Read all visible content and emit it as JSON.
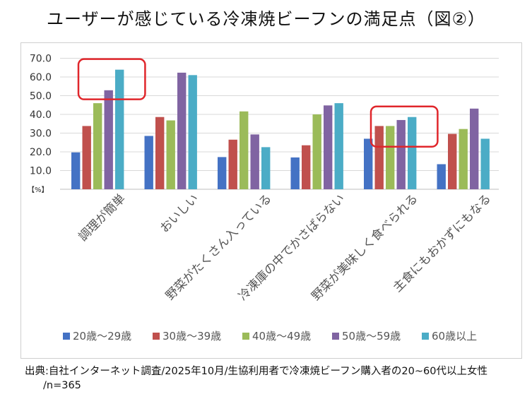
{
  "title": "ユーザーが感じている冷凍焼ビーフンの満足点（図②）",
  "chart_data": {
    "type": "bar",
    "title": "ユーザーが感じている冷凍焼ビーフンの満足点（図②）",
    "unit_label": "【%】",
    "ylim": [
      0,
      70
    ],
    "y_ticks": [
      "10.0",
      "20.0",
      "30.0",
      "40.0",
      "50.0",
      "60.0",
      "70.0"
    ],
    "categories": [
      "調理が簡単",
      "おいしい",
      "野菜がたくさん入っている",
      "冷凍庫の中でかさばらない",
      "野菜が美味しく食べられる",
      "主食にもおかずにもなる"
    ],
    "series": [
      {
        "name": "20歳〜29歳",
        "color": "#4472C4",
        "values": [
          19.7,
          28.5,
          17.2,
          17.0,
          27.0,
          13.4
        ]
      },
      {
        "name": "30歳〜39歳",
        "color": "#C0504D",
        "values": [
          33.8,
          38.6,
          26.5,
          23.5,
          33.8,
          29.6
        ]
      },
      {
        "name": "40歳〜49歳",
        "color": "#9BBB59",
        "values": [
          46.0,
          36.8,
          41.6,
          40.0,
          33.8,
          32.2
        ]
      },
      {
        "name": "50歳〜59歳",
        "color": "#8064A2",
        "values": [
          52.9,
          62.3,
          29.3,
          44.8,
          37.0,
          43.1
        ]
      },
      {
        "name": "60歳以上",
        "color": "#4BACC6",
        "values": [
          63.9,
          61.0,
          22.5,
          46.0,
          38.6,
          27.0
        ]
      }
    ],
    "highlight_color": "#E0262B",
    "highlighted_categories": [
      "調理が簡単",
      "野菜が美味しく食べられる"
    ],
    "legend_position": "bottom",
    "gridlines": true
  },
  "source": {
    "line1": "出典:自社インターネット調査/2025年10月/生協利用者で冷凍焼ビーフン購入者の20~60代以上女性",
    "line2": "/n=365"
  }
}
